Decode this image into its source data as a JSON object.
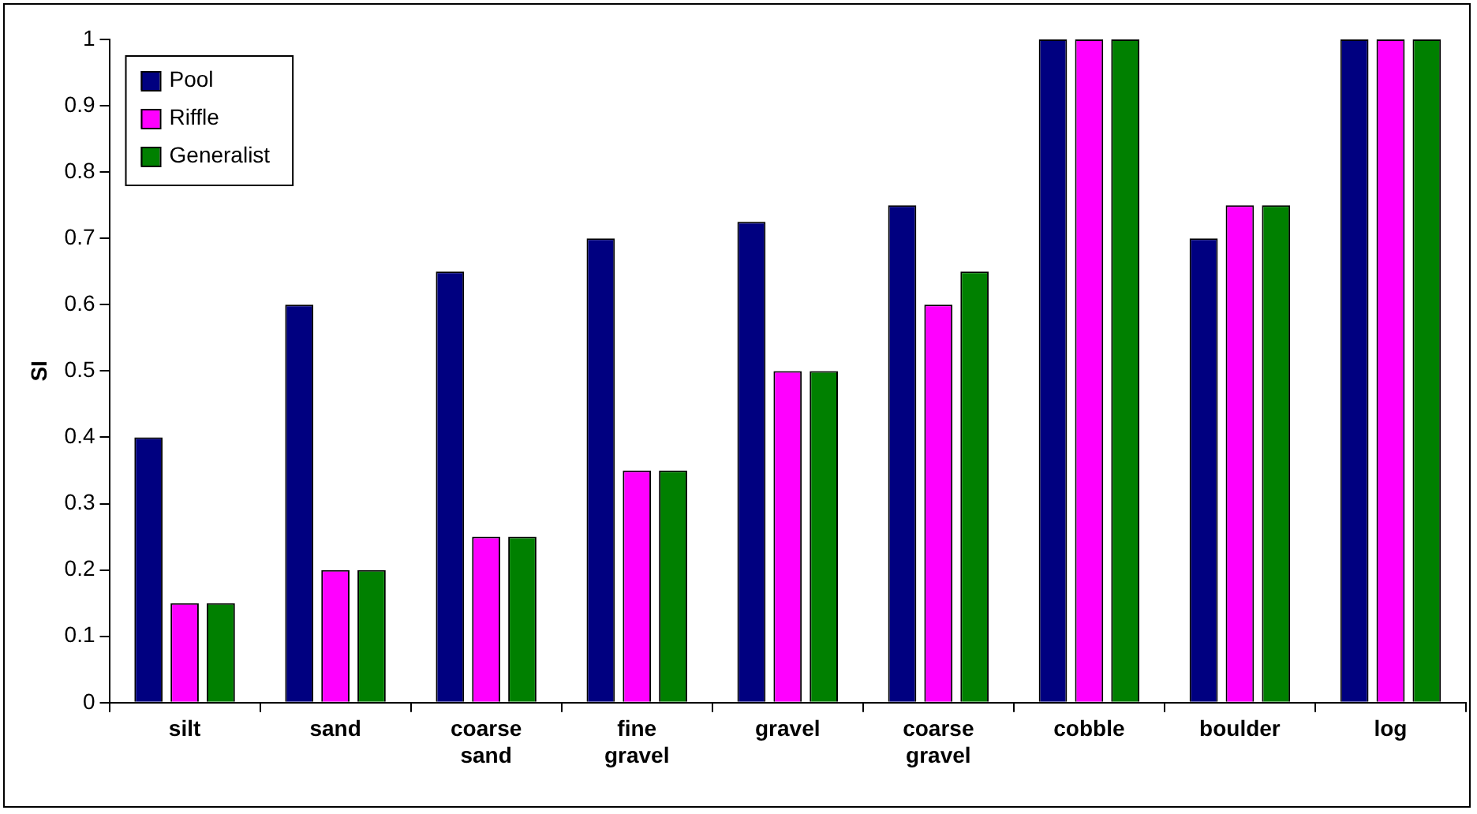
{
  "chart_data": {
    "type": "bar",
    "ylabel": "SI",
    "categories": [
      "silt",
      "sand",
      "coarse sand",
      "fine gravel",
      "gravel",
      "coarse gravel",
      "cobble",
      "boulder",
      "log"
    ],
    "series": [
      {
        "name": "Pool",
        "color": "#000080",
        "values": [
          0.4,
          0.6,
          0.65,
          0.7,
          0.725,
          0.75,
          1,
          0.7,
          1
        ]
      },
      {
        "name": "Riffle",
        "color": "#ff00ff",
        "values": [
          0.15,
          0.2,
          0.25,
          0.35,
          0.5,
          0.6,
          1,
          0.75,
          1
        ]
      },
      {
        "name": "Generalist",
        "color": "#008000",
        "values": [
          0.15,
          0.2,
          0.25,
          0.35,
          0.5,
          0.65,
          1,
          0.75,
          1
        ]
      }
    ],
    "ylim": [
      0,
      1
    ],
    "yticks": [
      0,
      0.1,
      0.2,
      0.3,
      0.4,
      0.5,
      0.6,
      0.7,
      0.8,
      0.9,
      1
    ],
    "grid": false,
    "legend": "top left"
  }
}
